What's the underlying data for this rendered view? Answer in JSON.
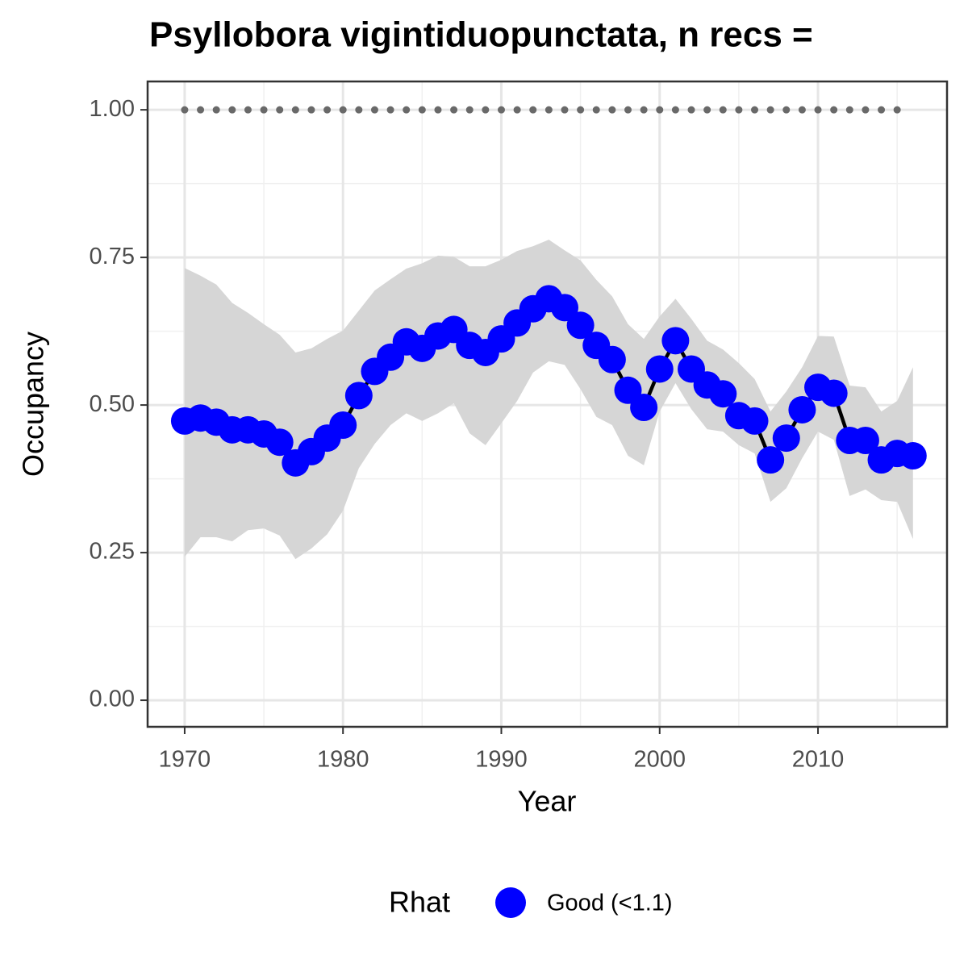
{
  "chart_data": {
    "type": "line",
    "title": "Psyllobora vigintiduopunctata, n recs =",
    "x_label": "Year",
    "y_label": "Occupancy",
    "x": [
      1970,
      1971,
      1972,
      1973,
      1974,
      1975,
      1976,
      1977,
      1978,
      1979,
      1980,
      1981,
      1982,
      1983,
      1984,
      1985,
      1986,
      1987,
      1988,
      1989,
      1990,
      1991,
      1992,
      1993,
      1994,
      1995,
      1996,
      1997,
      1998,
      1999,
      2000,
      2001,
      2002,
      2003,
      2004,
      2005,
      2006,
      2007,
      2008,
      2009,
      2010,
      2011,
      2012,
      2013,
      2014,
      2015,
      2016
    ],
    "series": [
      {
        "name": "Good (<1.1)",
        "color": "#0000ff",
        "line_color": "#000000",
        "band_color": "#d6d6d6",
        "values": [
          0.473,
          0.478,
          0.471,
          0.458,
          0.458,
          0.451,
          0.437,
          0.402,
          0.421,
          0.444,
          0.466,
          0.516,
          0.557,
          0.581,
          0.607,
          0.596,
          0.617,
          0.628,
          0.601,
          0.589,
          0.612,
          0.639,
          0.663,
          0.68,
          0.665,
          0.635,
          0.601,
          0.577,
          0.525,
          0.496,
          0.561,
          0.609,
          0.561,
          0.534,
          0.519,
          0.482,
          0.473,
          0.407,
          0.444,
          0.492,
          0.53,
          0.52,
          0.44,
          0.44,
          0.407,
          0.418,
          0.414
        ],
        "lower": [
          0.243,
          0.276,
          0.276,
          0.269,
          0.288,
          0.291,
          0.279,
          0.239,
          0.257,
          0.281,
          0.321,
          0.393,
          0.434,
          0.466,
          0.486,
          0.473,
          0.486,
          0.503,
          0.452,
          0.432,
          0.469,
          0.507,
          0.555,
          0.574,
          0.568,
          0.527,
          0.48,
          0.466,
          0.414,
          0.398,
          0.489,
          0.537,
          0.493,
          0.459,
          0.455,
          0.432,
          0.418,
          0.336,
          0.359,
          0.41,
          0.455,
          0.441,
          0.346,
          0.357,
          0.339,
          0.336,
          0.273
        ],
        "upper": [
          0.732,
          0.719,
          0.704,
          0.673,
          0.656,
          0.637,
          0.619,
          0.589,
          0.596,
          0.612,
          0.626,
          0.66,
          0.694,
          0.713,
          0.731,
          0.74,
          0.753,
          0.751,
          0.735,
          0.735,
          0.746,
          0.761,
          0.769,
          0.78,
          0.762,
          0.745,
          0.712,
          0.684,
          0.637,
          0.612,
          0.65,
          0.68,
          0.646,
          0.609,
          0.594,
          0.571,
          0.544,
          0.489,
          0.523,
          0.564,
          0.617,
          0.616,
          0.533,
          0.53,
          0.489,
          0.507,
          0.564
        ]
      }
    ],
    "reference": {
      "color": "#696969",
      "x": [
        1970,
        1971,
        1972,
        1973,
        1974,
        1975,
        1976,
        1977,
        1978,
        1979,
        1980,
        1981,
        1982,
        1983,
        1984,
        1985,
        1986,
        1987,
        1988,
        1989,
        1990,
        1991,
        1992,
        1993,
        1994,
        1995,
        1996,
        1997,
        1998,
        1999,
        2000,
        2001,
        2002,
        2003,
        2004,
        2005,
        2006,
        2007,
        2008,
        2009,
        2010,
        2011,
        2012,
        2013,
        2014,
        2015
      ],
      "values": [
        1,
        1,
        1,
        1,
        1,
        1,
        1,
        1,
        1,
        1,
        1,
        1,
        1,
        1,
        1,
        1,
        1,
        1,
        1,
        1,
        1,
        1,
        1,
        1,
        1,
        1,
        1,
        1,
        1,
        1,
        1,
        1,
        1,
        1,
        1,
        1,
        1,
        1,
        1,
        1,
        1,
        1,
        1,
        1,
        1,
        1
      ]
    },
    "legend_title": "Rhat",
    "legend_position": "bottom",
    "xlim": [
      1967.66,
      2018.15
    ],
    "ylim": [
      -0.045,
      1.048
    ],
    "xticks": [
      1970,
      1980,
      1990,
      2000,
      2010
    ],
    "yticks": [
      {
        "value": 0,
        "label": "0.00"
      },
      {
        "value": 0.25,
        "label": "0.25"
      },
      {
        "value": 0.5,
        "label": "0.50"
      },
      {
        "value": 0.75,
        "label": "0.75"
      },
      {
        "value": 1,
        "label": "1.00"
      }
    ],
    "x_minor_grid": [
      1975,
      1985,
      1995,
      2005,
      2015
    ],
    "y_minor_grid": [
      0.125,
      0.375,
      0.625,
      0.875
    ],
    "grid": true
  }
}
